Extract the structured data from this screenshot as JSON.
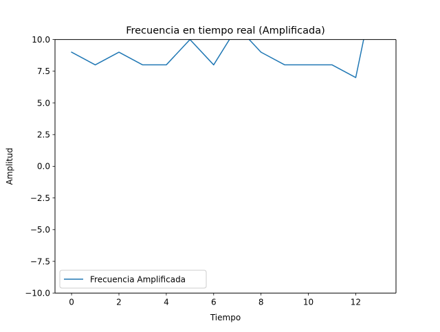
{
  "chart_data": {
    "type": "line",
    "title": "Frecuencia en tiempo real (Amplificada)",
    "xlabel": "Tiempo",
    "ylabel": "Amplitud",
    "xlim": [
      -0.7,
      13.7
    ],
    "ylim": [
      -10.0,
      10.0
    ],
    "xticks": [
      0,
      2,
      4,
      6,
      8,
      10,
      12
    ],
    "xtick_labels": [
      "0",
      "2",
      "4",
      "6",
      "8",
      "10",
      "12"
    ],
    "yticks": [
      -10.0,
      -7.5,
      -5.0,
      -2.5,
      0.0,
      2.5,
      5.0,
      7.5,
      10.0
    ],
    "ytick_labels": [
      "−10.0",
      "−7.5",
      "−5.0",
      "−2.5",
      "0.0",
      "2.5",
      "5.0",
      "7.5",
      "10.0"
    ],
    "grid": false,
    "legend_position": "lower left",
    "series": [
      {
        "name": "Frecuencia Amplificada",
        "color": "#1f77b4",
        "x": [
          0,
          1,
          2,
          3,
          4,
          5,
          6,
          7,
          8,
          9,
          10,
          11,
          12,
          13
        ],
        "y": [
          9.0,
          8.0,
          9.0,
          8.0,
          8.0,
          10.0,
          8.0,
          11.0,
          9.0,
          8.0,
          8.0,
          8.0,
          7.0,
          16.0
        ]
      }
    ]
  }
}
